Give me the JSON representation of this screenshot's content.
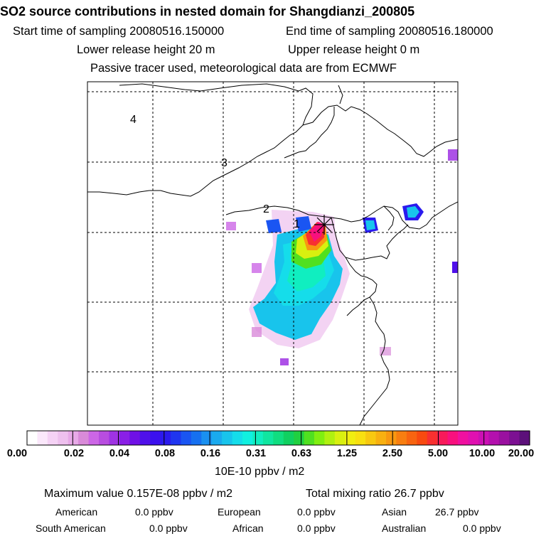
{
  "header": {
    "title": "SO2 source contributions in nested domain for Shangdianzi_200805",
    "start_time": "Start time of sampling 20080516.150000",
    "end_time": "End time of sampling 20080516.180000",
    "lower_height": "Lower release height   20 m",
    "upper_height": "Upper release height    0 m",
    "tracer_note": "Passive tracer used, meteorological data are from ECMWF"
  },
  "map": {
    "distance_labels": [
      "1",
      "2",
      "3",
      "4"
    ],
    "marker": "receptor-star"
  },
  "legend": {
    "ticks": [
      "0.00",
      "0.02",
      "0.04",
      "0.08",
      "0.16",
      "0.31",
      "0.63",
      "1.25",
      "2.50",
      "5.00",
      "10.00",
      "20.00"
    ],
    "colors": [
      "#ffffff",
      "#fbe8fb",
      "#f5d2f5",
      "#eec0ee",
      "#e7a9e7",
      "#d98ad9",
      "#cc66e6",
      "#b84de0",
      "#9f33e3",
      "#8a1fe6",
      "#6f10e6",
      "#4f10ea",
      "#3b10ee",
      "#2a1aee",
      "#1f35f0",
      "#1a55f2",
      "#1670f0",
      "#1a90f0",
      "#1aaaee",
      "#18c4ec",
      "#15ddea",
      "#10f0e0",
      "#10eec0",
      "#10e6a0",
      "#10dd80",
      "#10d060",
      "#20d040",
      "#50e020",
      "#80ee10",
      "#b0f010",
      "#d8f010",
      "#f0ee10",
      "#f8e010",
      "#f8c810",
      "#f8b010",
      "#f89810",
      "#f87e10",
      "#f86410",
      "#f84a10",
      "#f83030",
      "#f81a5a",
      "#f8107e",
      "#f010a0",
      "#e010b0",
      "#cc10b4",
      "#b410ae",
      "#9a10a0",
      "#7c1092",
      "#5c107a"
    ],
    "unit": "10E-10 ppbv / m2"
  },
  "summary": {
    "max_value": "Maximum value  0.157E-08 ppbv / m2",
    "total": "Total mixing ratio      26.7 ppbv",
    "regions": [
      {
        "name": "American",
        "value": "0.0 ppbv"
      },
      {
        "name": "European",
        "value": "0.0 ppbv"
      },
      {
        "name": "Asian",
        "value": "26.7 ppbv"
      },
      {
        "name": "South American",
        "value": "0.0 ppbv"
      },
      {
        "name": "African",
        "value": "0.0 ppbv"
      },
      {
        "name": "Australian",
        "value": "0.0 ppbv"
      }
    ]
  }
}
